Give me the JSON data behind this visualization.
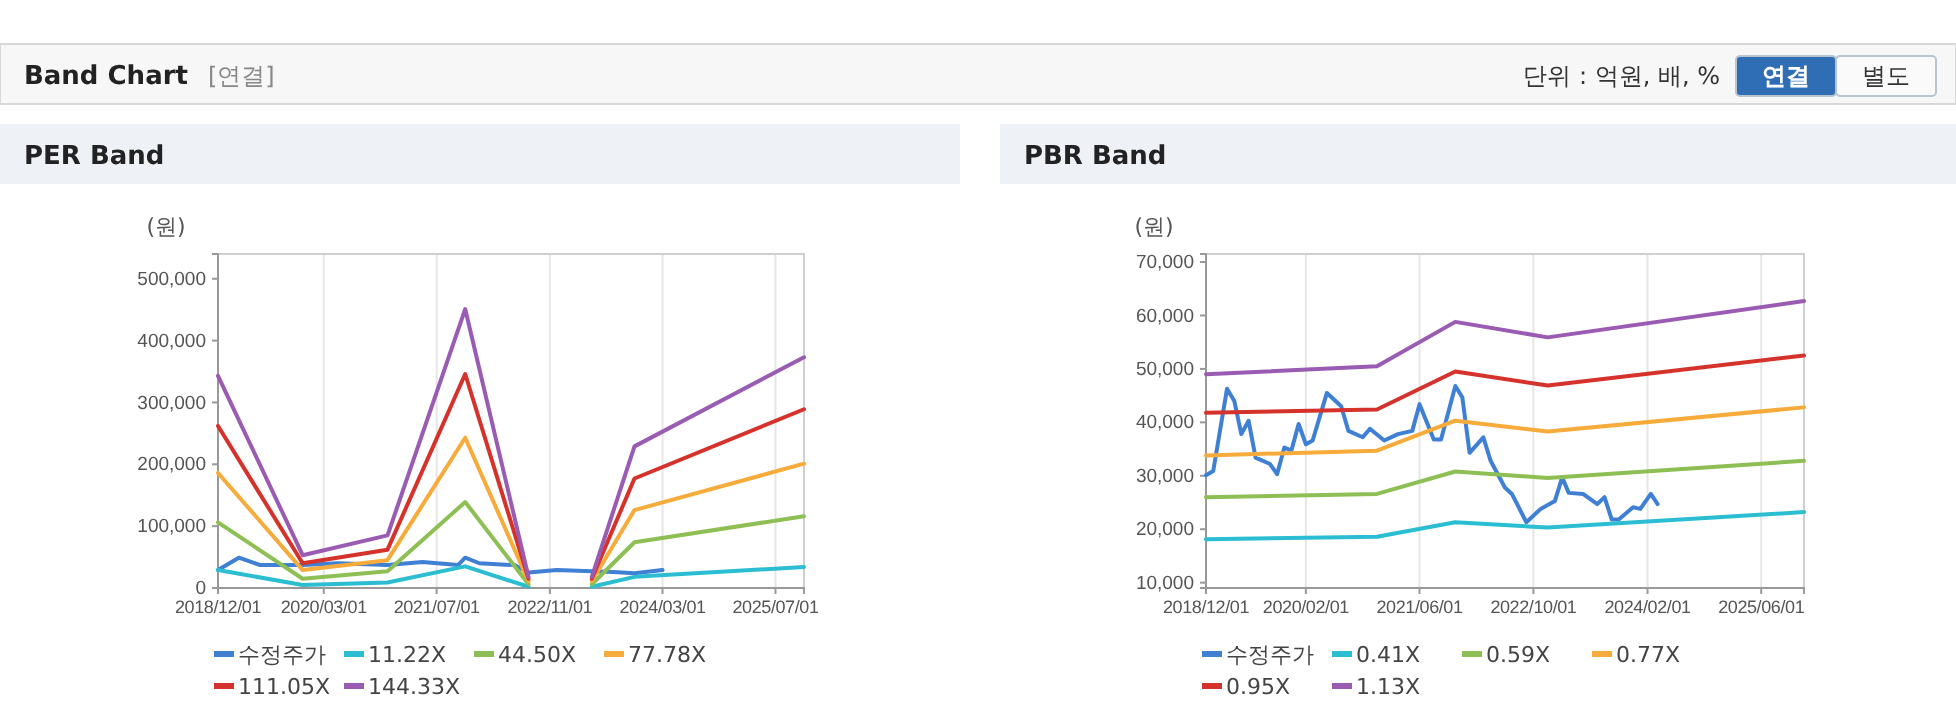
{
  "chart_data": [
    {
      "type": "other",
      "title": "Band Chart",
      "annotations": [
        "[연결]",
        "단위 : 억원, 배, %",
        "연결",
        "별도"
      ]
    },
    {
      "type": "line",
      "title": "PER Band",
      "ylabel": "(원)",
      "xlim": [
        "2018-12-01",
        "2025-11-01"
      ],
      "ylim": [
        0,
        540000
      ],
      "xticks": [
        {
          "value": "2018-12-01",
          "label": "2018/12/01"
        },
        {
          "value": "2020-03-01",
          "label": "2020/03/01"
        },
        {
          "value": "2021-07-01",
          "label": "2021/07/01"
        },
        {
          "value": "2022-11-01",
          "label": "2022/11/01"
        },
        {
          "value": "2024-03-01",
          "label": "2024/03/01"
        },
        {
          "value": "2025-07-01",
          "label": "2025/07/01"
        }
      ],
      "yticks": [
        {
          "value": 0,
          "label": "0"
        },
        {
          "value": 100000,
          "label": "100,000"
        },
        {
          "value": 200000,
          "label": "200,000"
        },
        {
          "value": 300000,
          "label": "300,000"
        },
        {
          "value": 400000,
          "label": "400,000"
        },
        {
          "value": 500000,
          "label": "500,000"
        }
      ],
      "grid": "x",
      "legend": "bottom",
      "series": [
        {
          "name": "수정주가",
          "color": "#3f7fd4",
          "x": [
            "2018-12-01",
            "2019-03-01",
            "2019-06-01",
            "2019-12-01",
            "2020-05-01",
            "2020-12-01",
            "2021-05-01",
            "2021-10-01",
            "2021-11-01",
            "2022-01-01",
            "2022-06-01",
            "2022-08-01",
            "2022-12-01",
            "2023-05-01",
            "2023-08-01",
            "2023-11-01",
            "2024-03-01"
          ],
          "values": [
            29000,
            49000,
            37000,
            37000,
            40000,
            37000,
            42000,
            37000,
            49000,
            40000,
            37000,
            25000,
            29000,
            27000,
            26000,
            24000,
            29000
          ]
        },
        {
          "name": "11.22X",
          "color": "#2bbdd1",
          "x": [
            "2018-12-01",
            "2019-12-01",
            "2020-12-01",
            "2021-11-01",
            "2022-08-01",
            "2023-01-01",
            "2023-05-01",
            "2023-11-01",
            "2025-11-01"
          ],
          "values": [
            29000,
            5000,
            9000,
            35000,
            2000,
            null,
            2000,
            18000,
            34000
          ]
        },
        {
          "name": "44.50X",
          "color": "#8dbf55",
          "x": [
            "2018-12-01",
            "2019-12-01",
            "2020-12-01",
            "2021-11-01",
            "2022-08-01",
            "2023-01-01",
            "2023-05-01",
            "2023-11-01",
            "2025-11-01"
          ],
          "values": [
            106000,
            15000,
            27000,
            139000,
            6000,
            null,
            6000,
            74000,
            116000
          ]
        },
        {
          "name": "77.78X",
          "color": "#f6ab3b",
          "x": [
            "2018-12-01",
            "2019-12-01",
            "2020-12-01",
            "2021-11-01",
            "2022-08-01",
            "2023-01-01",
            "2023-05-01",
            "2023-11-01",
            "2025-11-01"
          ],
          "values": [
            186000,
            29000,
            45000,
            243000,
            11000,
            null,
            11000,
            126000,
            201000
          ]
        },
        {
          "name": "111.05X",
          "color": "#d6322c",
          "x": [
            "2018-12-01",
            "2019-12-01",
            "2020-12-01",
            "2021-11-01",
            "2022-08-01",
            "2023-01-01",
            "2023-05-01",
            "2023-11-01",
            "2025-11-01"
          ],
          "values": [
            262000,
            40000,
            62000,
            346000,
            15000,
            null,
            15000,
            177000,
            289000
          ]
        },
        {
          "name": "144.33X",
          "color": "#9a5bb3",
          "x": [
            "2018-12-01",
            "2019-12-01",
            "2020-12-01",
            "2021-11-01",
            "2022-08-01",
            "2023-01-01",
            "2023-05-01",
            "2023-11-01",
            "2025-11-01"
          ],
          "values": [
            343000,
            53000,
            85000,
            451000,
            18000,
            null,
            18000,
            229000,
            373000
          ]
        }
      ]
    },
    {
      "type": "line",
      "title": "PBR Band",
      "ylabel": "(원)",
      "xlim": [
        "2018-12-01",
        "2025-12-01"
      ],
      "ylim": [
        9000,
        71500
      ],
      "xticks": [
        {
          "value": "2018-12-01",
          "label": "2018/12/01"
        },
        {
          "value": "2020-02-01",
          "label": "2020/02/01"
        },
        {
          "value": "2021-06-01",
          "label": "2021/06/01"
        },
        {
          "value": "2022-10-01",
          "label": "2022/10/01"
        },
        {
          "value": "2024-02-01",
          "label": "2024/02/01"
        },
        {
          "value": "2025-06-01",
          "label": "2025/06/01"
        }
      ],
      "yticks": [
        {
          "value": 10000,
          "label": "10,000"
        },
        {
          "value": 20000,
          "label": "20,000"
        },
        {
          "value": 30000,
          "label": "30,000"
        },
        {
          "value": 40000,
          "label": "40,000"
        },
        {
          "value": 50000,
          "label": "50,000"
        },
        {
          "value": 60000,
          "label": "60,000"
        },
        {
          "value": 70000,
          "label": "70,000"
        }
      ],
      "grid": "x",
      "legend": "bottom",
      "series": [
        {
          "name": "수정주가",
          "color": "#3f7fd4",
          "x": [
            "2018-12-01",
            "2019-01-01",
            "2019-03-01",
            "2019-04-01",
            "2019-05-01",
            "2019-06-01",
            "2019-07-01",
            "2019-09-01",
            "2019-10-01",
            "2019-11-01",
            "2019-12-01",
            "2020-01-01",
            "2020-02-01",
            "2020-03-01",
            "2020-05-01",
            "2020-07-01",
            "2020-08-01",
            "2020-10-01",
            "2020-11-01",
            "2021-01-01",
            "2021-03-01",
            "2021-05-01",
            "2021-06-01",
            "2021-08-01",
            "2021-09-01",
            "2021-11-01",
            "2021-12-01",
            "2022-01-01",
            "2022-03-01",
            "2022-04-01",
            "2022-06-01",
            "2022-07-01",
            "2022-09-01",
            "2022-11-01",
            "2023-01-01",
            "2023-02-01",
            "2023-03-01",
            "2023-05-01",
            "2023-07-01",
            "2023-08-01",
            "2023-09-01",
            "2023-10-01",
            "2023-12-01",
            "2024-01-01",
            "2024-02-15",
            "2024-03-15"
          ],
          "values": [
            30100,
            30900,
            46300,
            44000,
            37800,
            40300,
            33400,
            32200,
            30300,
            35300,
            34700,
            39700,
            35900,
            36600,
            45500,
            43000,
            38400,
            37200,
            38800,
            36600,
            37800,
            38400,
            43400,
            36800,
            36800,
            46800,
            44700,
            34300,
            37200,
            32800,
            27800,
            26600,
            21300,
            23800,
            25300,
            29700,
            26800,
            26600,
            24700,
            26000,
            21800,
            21800,
            24100,
            23800,
            26600,
            24700
          ]
        },
        {
          "name": "0.41X",
          "color": "#2bbdd1",
          "x": [
            "2018-12-01",
            "2020-12-01",
            "2021-11-01",
            "2022-12-01",
            "2025-12-01"
          ],
          "values": [
            18100,
            18600,
            21300,
            20300,
            23200
          ]
        },
        {
          "name": "0.59X",
          "color": "#8dbf55",
          "x": [
            "2018-12-01",
            "2020-12-01",
            "2021-11-01",
            "2022-12-01",
            "2025-12-01"
          ],
          "values": [
            26000,
            26600,
            30800,
            29600,
            32800
          ]
        },
        {
          "name": "0.77X",
          "color": "#f6ab3b",
          "x": [
            "2018-12-01",
            "2020-12-01",
            "2021-11-01",
            "2022-12-01",
            "2025-12-01"
          ],
          "values": [
            33800,
            34700,
            40300,
            38300,
            42800
          ]
        },
        {
          "name": "0.95X",
          "color": "#d6322c",
          "x": [
            "2018-12-01",
            "2020-12-01",
            "2021-11-01",
            "2022-12-01",
            "2025-12-01"
          ],
          "values": [
            41800,
            42400,
            49500,
            46900,
            52500
          ]
        },
        {
          "name": "1.13X",
          "color": "#9a5bb3",
          "x": [
            "2018-12-01",
            "2020-12-01",
            "2021-11-01",
            "2022-12-01",
            "2025-12-01"
          ],
          "values": [
            49000,
            50500,
            58800,
            55900,
            62700
          ]
        }
      ]
    }
  ]
}
